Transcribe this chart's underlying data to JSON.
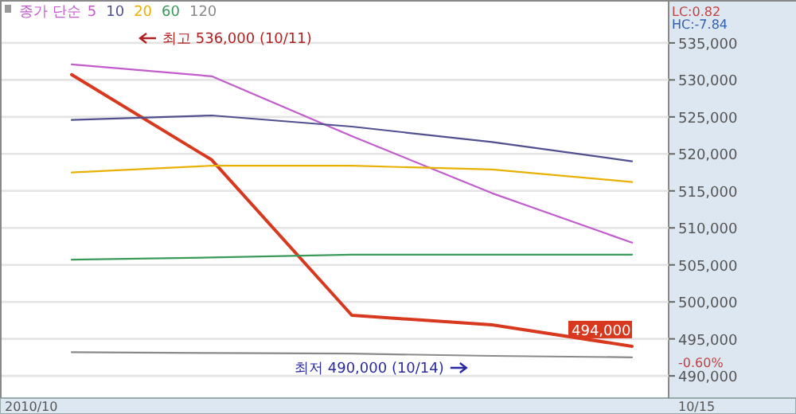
{
  "chart_data": {
    "type": "line",
    "legend_title": "종가 단순",
    "legend": "top left",
    "grid": "y",
    "categories": [
      null,
      null,
      null,
      null,
      null
    ],
    "ylim": [
      487000,
      540800
    ],
    "yticks": [
      {
        "value": 490000,
        "label": "490,000"
      },
      {
        "value": 495000,
        "label": "495,000"
      },
      {
        "value": 500000,
        "label": "500,000"
      },
      {
        "value": 505000,
        "label": "505,000"
      },
      {
        "value": 510000,
        "label": "510,000"
      },
      {
        "value": 515000,
        "label": "515,000"
      },
      {
        "value": 520000,
        "label": "520,000"
      },
      {
        "value": 525000,
        "label": "525,000"
      },
      {
        "value": 530000,
        "label": "530,000"
      },
      {
        "value": 535000,
        "label": "535,000"
      }
    ],
    "series": [
      {
        "color": "#d8381e",
        "values": [
          530700,
          519200,
          498200,
          496900,
          494000
        ],
        "value_labels": [
          null,
          null,
          null,
          null,
          "494,000"
        ]
      },
      {
        "name": "5",
        "color": "#c25ccc",
        "values": [
          532100,
          530500,
          522400,
          514700,
          508000
        ]
      },
      {
        "name": "10",
        "color": "#50508f",
        "values": [
          524600,
          525200,
          523700,
          521600,
          519000
        ]
      },
      {
        "name": "20",
        "color": "#e8b000",
        "values": [
          517500,
          518400,
          518400,
          517900,
          516200
        ]
      },
      {
        "name": "60",
        "color": "#3a9a5a",
        "values": [
          505700,
          506000,
          506400,
          506400,
          506400
        ]
      },
      {
        "name": "120",
        "color": "#8a8a8a",
        "values": [
          493200,
          493100,
          493000,
          492700,
          492500
        ]
      }
    ],
    "annotations": [
      "최고 536,000 (10/11)",
      "최저 490,000 (10/14)",
      "LC:0.82",
      "HC:-7.84",
      "-0.60%",
      "2010/10",
      "10/15"
    ]
  }
}
